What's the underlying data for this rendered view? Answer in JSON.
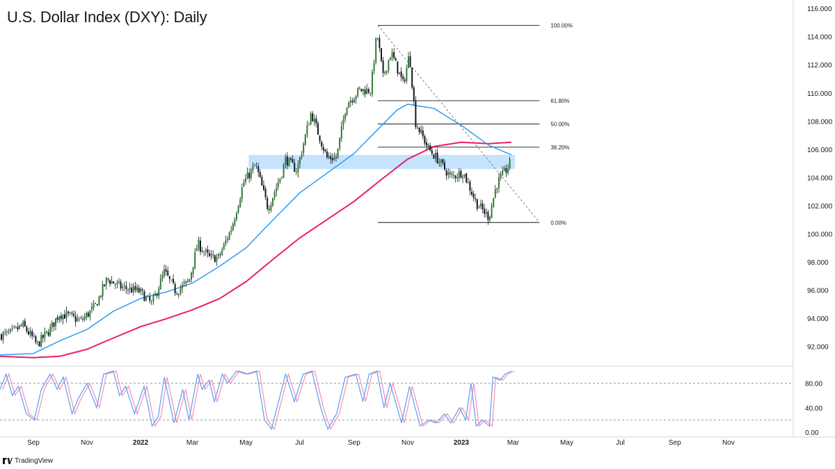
{
  "title": "U.S. Dollar Index (DXY): Daily",
  "brand": "TradingView",
  "colors": {
    "up": "#26a69a",
    "down": "#131722",
    "candle_up_fill": "#2e7d32",
    "sma_fast": "#2196f3",
    "sma_slow": "#e91e63",
    "zone": "#bbdefb",
    "stoch_k": "#5b9cf6",
    "stoch_d": "#f48fb1",
    "grid_text": "#131722"
  },
  "chart_data": [
    {
      "type": "candlestick",
      "name": "DXY Daily",
      "price_axis_labels": [
        "116.000",
        "114.000",
        "112.000",
        "110.000",
        "108.000",
        "106.000",
        "104.000",
        "102.000",
        "100.000",
        "98.000",
        "96.000",
        "94.000",
        "92.000"
      ],
      "price_axis_values": [
        116,
        114,
        112,
        110,
        108,
        106,
        104,
        102,
        100,
        98,
        96,
        94,
        92
      ],
      "ylim": [
        90.6,
        116.6
      ],
      "time_axis_labels": [
        "Sep",
        "Nov",
        "2022",
        "Mar",
        "May",
        "Jul",
        "Sep",
        "Nov",
        "2023",
        "Mar",
        "May",
        "Jul",
        "Sep",
        "Nov"
      ],
      "time_axis_months": [
        "2021-09",
        "2021-11",
        "2022-01",
        "2022-03",
        "2022-05",
        "2022-07",
        "2022-09",
        "2022-11",
        "2023-01",
        "2023-03",
        "2023-05",
        "2023-07",
        "2023-09",
        "2023-11"
      ],
      "close_path": [
        [
          "2021-07-25",
          92.8
        ],
        [
          "2021-08-05",
          92.9
        ],
        [
          "2021-08-20",
          93.5
        ],
        [
          "2021-08-31",
          92.6
        ],
        [
          "2021-09-05",
          92.1
        ],
        [
          "2021-09-20",
          93.2
        ],
        [
          "2021-09-30",
          94.3
        ],
        [
          "2021-10-10",
          94.2
        ],
        [
          "2021-10-25",
          93.8
        ],
        [
          "2021-11-10",
          94.8
        ],
        [
          "2021-11-24",
          96.8
        ],
        [
          "2021-12-10",
          96.2
        ],
        [
          "2021-12-31",
          95.9
        ],
        [
          "2022-01-14",
          95.0
        ],
        [
          "2022-01-28",
          97.3
        ],
        [
          "2022-02-10",
          95.9
        ],
        [
          "2022-02-25",
          96.6
        ],
        [
          "2022-03-07",
          99.3
        ],
        [
          "2022-03-20",
          98.3
        ],
        [
          "2022-03-31",
          98.3
        ],
        [
          "2022-04-15",
          100.5
        ],
        [
          "2022-04-28",
          103.6
        ],
        [
          "2022-05-12",
          104.9
        ],
        [
          "2022-05-26",
          101.8
        ],
        [
          "2022-06-10",
          104.2
        ],
        [
          "2022-06-15",
          105.3
        ],
        [
          "2022-06-28",
          104.5
        ],
        [
          "2022-07-14",
          108.6
        ],
        [
          "2022-08-01",
          105.4
        ],
        [
          "2022-08-12",
          105.4
        ],
        [
          "2022-08-23",
          109.2
        ],
        [
          "2022-09-07",
          110.2
        ],
        [
          "2022-09-20",
          110.2
        ],
        [
          "2022-09-27",
          114.3
        ],
        [
          "2022-10-04",
          111.1
        ],
        [
          "2022-10-13",
          112.9
        ],
        [
          "2022-10-27",
          110.6
        ],
        [
          "2022-11-03",
          112.8
        ],
        [
          "2022-11-10",
          107.9
        ],
        [
          "2022-11-25",
          106.0
        ],
        [
          "2022-12-05",
          105.3
        ],
        [
          "2022-12-20",
          104.0
        ],
        [
          "2023-01-03",
          104.4
        ],
        [
          "2023-01-18",
          102.2
        ],
        [
          "2023-02-01",
          101.2
        ],
        [
          "2023-02-02",
          101.3
        ],
        [
          "2023-02-10",
          103.5
        ],
        [
          "2023-02-22",
          104.6
        ],
        [
          "2023-02-27",
          105.2
        ]
      ],
      "sma_fast_path": [
        [
          "2021-07-25",
          91.4
        ],
        [
          "2021-09-01",
          91.5
        ],
        [
          "2021-10-01",
          92.4
        ],
        [
          "2021-11-01",
          93.2
        ],
        [
          "2021-12-01",
          94.5
        ],
        [
          "2022-01-01",
          95.4
        ],
        [
          "2022-02-01",
          95.9
        ],
        [
          "2022-03-01",
          96.5
        ],
        [
          "2022-04-01",
          97.7
        ],
        [
          "2022-05-01",
          99.0
        ],
        [
          "2022-06-01",
          101.0
        ],
        [
          "2022-07-01",
          102.9
        ],
        [
          "2022-08-01",
          104.3
        ],
        [
          "2022-09-01",
          105.7
        ],
        [
          "2022-10-01",
          107.6
        ],
        [
          "2022-10-20",
          108.8
        ],
        [
          "2022-11-01",
          109.2
        ],
        [
          "2022-12-01",
          108.9
        ],
        [
          "2023-01-01",
          107.7
        ],
        [
          "2023-02-01",
          106.3
        ],
        [
          "2023-02-27",
          105.6
        ]
      ],
      "sma_slow_path": [
        [
          "2021-07-25",
          91.3
        ],
        [
          "2021-09-01",
          91.2
        ],
        [
          "2021-10-01",
          91.3
        ],
        [
          "2021-11-01",
          91.8
        ],
        [
          "2021-12-01",
          92.6
        ],
        [
          "2022-01-01",
          93.4
        ],
        [
          "2022-02-01",
          94.0
        ],
        [
          "2022-03-01",
          94.6
        ],
        [
          "2022-04-01",
          95.4
        ],
        [
          "2022-05-01",
          96.6
        ],
        [
          "2022-06-01",
          98.2
        ],
        [
          "2022-07-01",
          99.7
        ],
        [
          "2022-08-01",
          101.0
        ],
        [
          "2022-09-01",
          102.3
        ],
        [
          "2022-10-01",
          103.8
        ],
        [
          "2022-11-01",
          105.3
        ],
        [
          "2022-12-01",
          106.2
        ],
        [
          "2023-01-01",
          106.5
        ],
        [
          "2023-02-01",
          106.4
        ],
        [
          "2023-02-27",
          106.5
        ]
      ],
      "fibonacci": {
        "high": 114.8,
        "low": 100.8,
        "start": "2022-09-28",
        "end": "2023-03-31",
        "levels": [
          {
            "label": "100.00%",
            "price": 114.8
          },
          {
            "label": "61.80%",
            "price": 109.45
          },
          {
            "label": "50.00%",
            "price": 107.8
          },
          {
            "label": "38.20%",
            "price": 106.15
          },
          {
            "label": "0.00%",
            "price": 100.8
          }
        ]
      },
      "trendline": {
        "from": [
          "2022-09-28",
          114.8
        ],
        "to": [
          "2023-03-31",
          100.8
        ]
      },
      "resistance_zone": {
        "from": "2022-05-04",
        "to": "2023-03-03",
        "top": 105.6,
        "bottom": 104.6
      }
    },
    {
      "type": "line",
      "name": "Stochastic",
      "axis_labels": [
        "80.00",
        "40.00",
        "0.00"
      ],
      "axis_values": [
        80,
        40,
        0
      ],
      "ylim": [
        -8,
        108
      ],
      "levels": [
        80,
        20
      ],
      "k_path": [
        [
          "2021-07-25",
          70
        ],
        [
          "2021-08-01",
          95
        ],
        [
          "2021-08-08",
          60
        ],
        [
          "2021-08-15",
          75
        ],
        [
          "2021-08-24",
          30
        ],
        [
          "2021-09-02",
          20
        ],
        [
          "2021-09-10",
          70
        ],
        [
          "2021-09-20",
          95
        ],
        [
          "2021-09-28",
          70
        ],
        [
          "2021-10-05",
          90
        ],
        [
          "2021-10-15",
          30
        ],
        [
          "2021-10-22",
          55
        ],
        [
          "2021-11-01",
          80
        ],
        [
          "2021-11-12",
          40
        ],
        [
          "2021-11-20",
          95
        ],
        [
          "2021-12-01",
          100
        ],
        [
          "2021-12-08",
          60
        ],
        [
          "2021-12-15",
          75
        ],
        [
          "2021-12-25",
          30
        ],
        [
          "2022-01-05",
          75
        ],
        [
          "2022-01-14",
          10
        ],
        [
          "2022-01-21",
          25
        ],
        [
          "2022-01-28",
          90
        ],
        [
          "2022-02-08",
          15
        ],
        [
          "2022-02-18",
          70
        ],
        [
          "2022-02-25",
          20
        ],
        [
          "2022-03-07",
          95
        ],
        [
          "2022-03-12",
          70
        ],
        [
          "2022-03-20",
          85
        ],
        [
          "2022-03-26",
          50
        ],
        [
          "2022-04-04",
          95
        ],
        [
          "2022-04-10",
          80
        ],
        [
          "2022-04-20",
          100
        ],
        [
          "2022-05-01",
          95
        ],
        [
          "2022-05-13",
          100
        ],
        [
          "2022-05-22",
          20
        ],
        [
          "2022-05-30",
          5
        ],
        [
          "2022-06-07",
          50
        ],
        [
          "2022-06-15",
          95
        ],
        [
          "2022-06-25",
          50
        ],
        [
          "2022-07-05",
          95
        ],
        [
          "2022-07-15",
          100
        ],
        [
          "2022-07-25",
          40
        ],
        [
          "2022-08-02",
          5
        ],
        [
          "2022-08-12",
          30
        ],
        [
          "2022-08-22",
          90
        ],
        [
          "2022-09-03",
          95
        ],
        [
          "2022-09-11",
          50
        ],
        [
          "2022-09-18",
          95
        ],
        [
          "2022-09-27",
          100
        ],
        [
          "2022-10-05",
          40
        ],
        [
          "2022-10-12",
          80
        ],
        [
          "2022-10-25",
          15
        ],
        [
          "2022-11-03",
          75
        ],
        [
          "2022-11-15",
          10
        ],
        [
          "2022-11-25",
          20
        ],
        [
          "2022-12-03",
          15
        ],
        [
          "2022-12-13",
          30
        ],
        [
          "2022-12-20",
          15
        ],
        [
          "2022-12-30",
          40
        ],
        [
          "2023-01-06",
          20
        ],
        [
          "2023-01-12",
          80
        ],
        [
          "2023-01-18",
          10
        ],
        [
          "2023-01-25",
          20
        ],
        [
          "2023-02-02",
          10
        ],
        [
          "2023-02-06",
          90
        ],
        [
          "2023-02-14",
          85
        ],
        [
          "2023-02-20",
          95
        ],
        [
          "2023-02-27",
          100
        ]
      ]
    }
  ]
}
